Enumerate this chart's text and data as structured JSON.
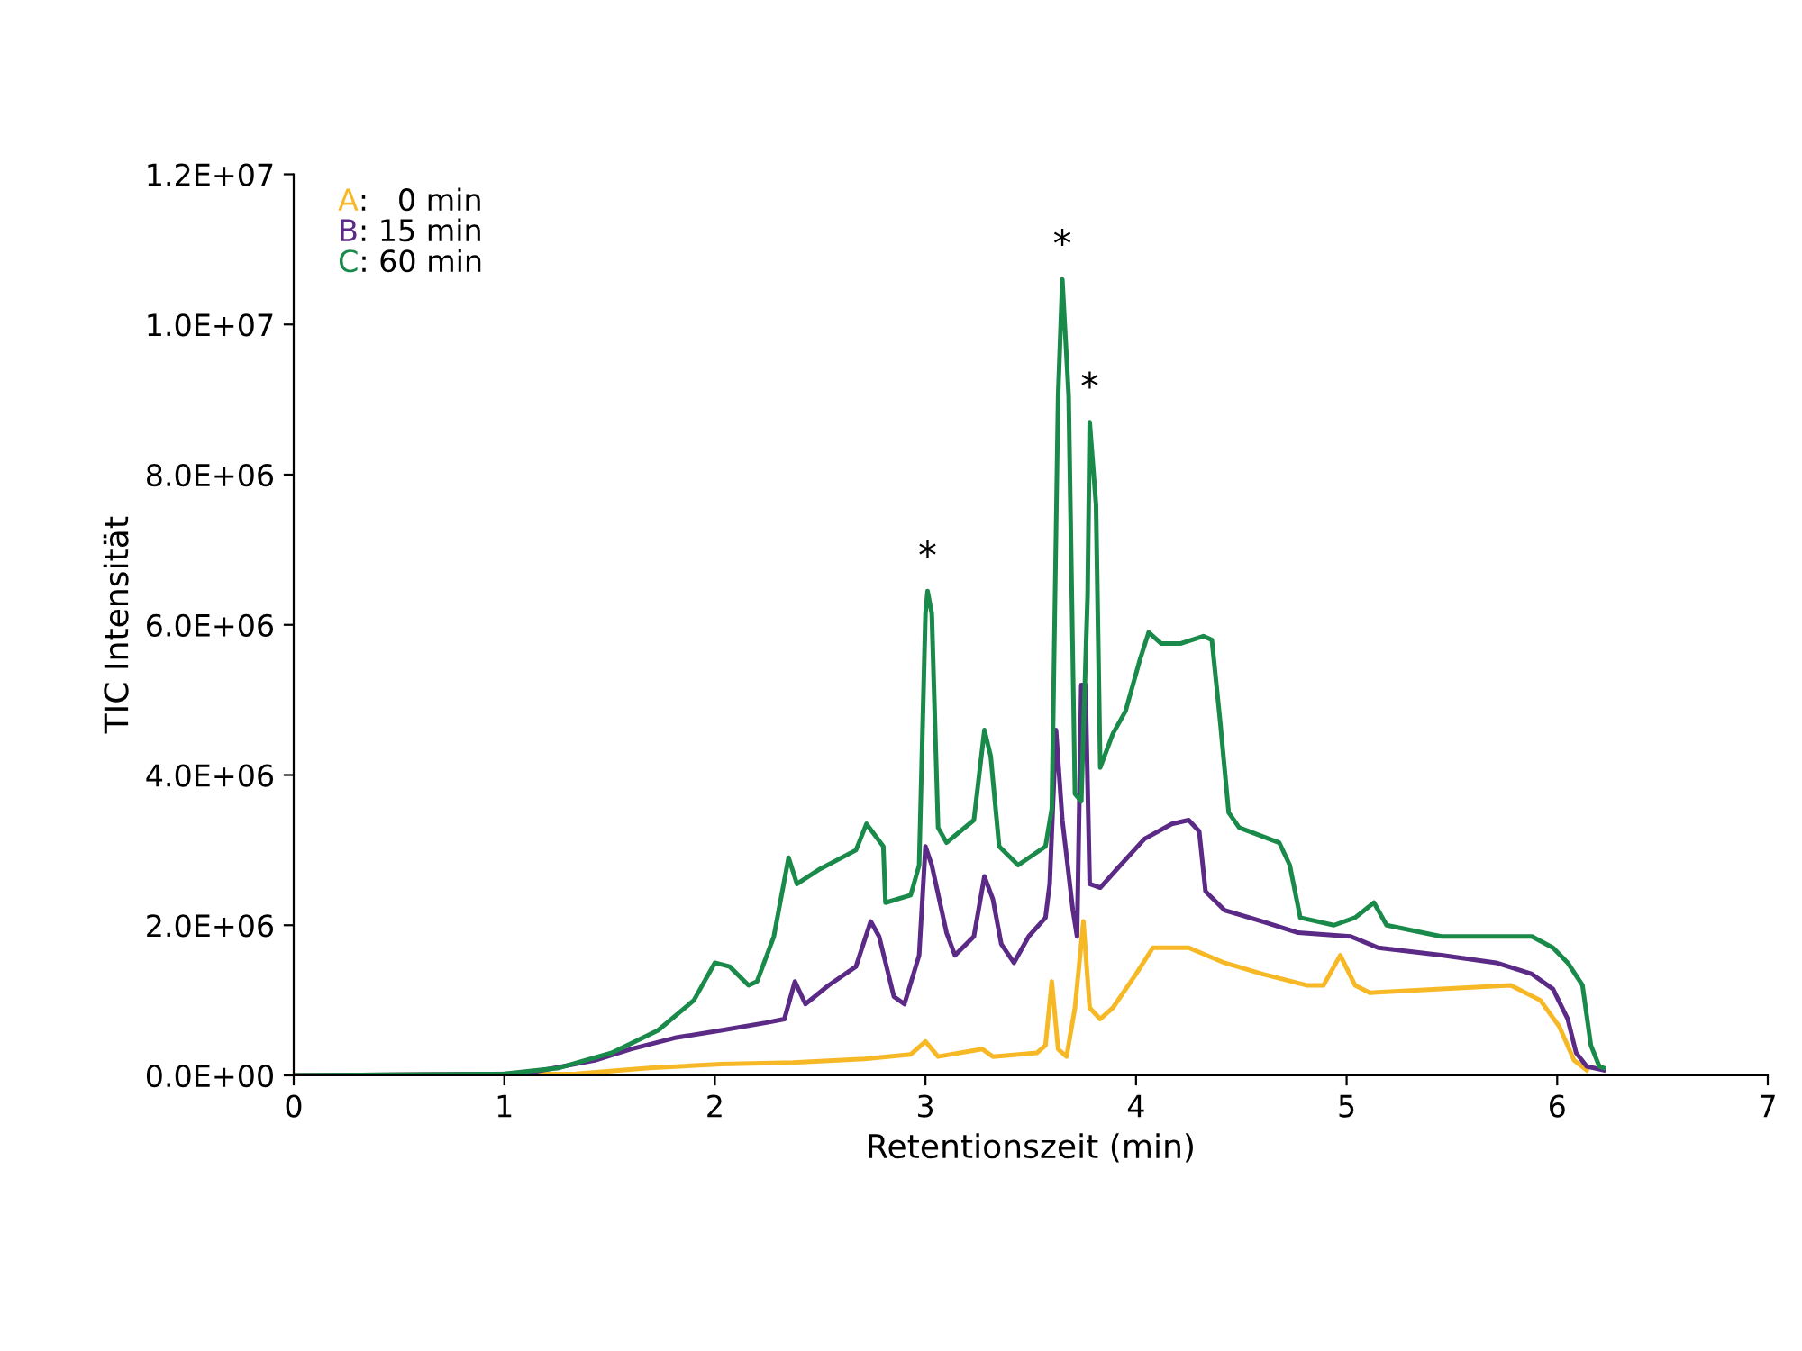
{
  "chart_data": {
    "type": "line",
    "xlabel": "Retentionszeit (min)",
    "ylabel": "TIC Intensität",
    "xlim": [
      0,
      7
    ],
    "xticks": [
      0,
      1,
      2,
      3,
      4,
      5,
      6,
      7
    ],
    "ylim": [
      0,
      12000000.0
    ],
    "yticks": [
      {
        "value": 0,
        "label": "0.0E+00"
      },
      {
        "value": 2000000.0,
        "label": "2.0E+06"
      },
      {
        "value": 4000000.0,
        "label": "4.0E+06"
      },
      {
        "value": 6000000.0,
        "label": "6.0E+06"
      },
      {
        "value": 8000000.0,
        "label": "8.0E+06"
      },
      {
        "value": 10000000.0,
        "label": "1.0E+07"
      },
      {
        "value": 12000000.0,
        "label": "1.2E+07"
      }
    ],
    "legend": "top left",
    "grid": false,
    "marker": "none",
    "line_style": "solid",
    "annotations": [
      {
        "text": "*",
        "x": 3.01,
        "y": 6450000.0
      },
      {
        "text": "*",
        "x": 3.65,
        "y": 10600000.0
      },
      {
        "text": "*",
        "x": 3.78,
        "y": 8700000.0
      }
    ],
    "series": [
      {
        "name": "A:   0 min",
        "color": "#f7b825",
        "x": [
          0,
          1.34,
          1.69,
          2.03,
          2.37,
          2.71,
          2.93,
          3.0,
          3.06,
          3.27,
          3.32,
          3.53,
          3.57,
          3.6,
          3.63,
          3.67,
          3.71,
          3.75,
          3.78,
          3.83,
          3.89,
          4.0,
          4.08,
          4.25,
          4.42,
          4.6,
          4.81,
          4.89,
          4.97,
          5.04,
          5.11,
          5.45,
          5.78,
          5.92,
          6.01,
          6.08,
          6.14
        ],
        "values": [
          0,
          20000.0,
          100000.0,
          150000.0,
          170000.0,
          220000.0,
          280000.0,
          450000.0,
          250000.0,
          350000.0,
          250000.0,
          300000.0,
          400000.0,
          1250000.0,
          350000.0,
          250000.0,
          900000.0,
          2050000.0,
          900000.0,
          750000.0,
          900000.0,
          1350000.0,
          1700000.0,
          1700000.0,
          1500000.0,
          1350000.0,
          1200000.0,
          1200000.0,
          1600000.0,
          1200000.0,
          1100000.0,
          1150000.0,
          1200000.0,
          1000000.0,
          650000.0,
          200000.0,
          70000.0
        ]
      },
      {
        "name": "B: 15 min",
        "color": "#5b2a86",
        "x": [
          0,
          1.09,
          1.43,
          1.6,
          1.81,
          2.03,
          2.24,
          2.33,
          2.38,
          2.43,
          2.54,
          2.67,
          2.74,
          2.78,
          2.85,
          2.9,
          2.97,
          3.0,
          3.03,
          3.1,
          3.14,
          3.23,
          3.28,
          3.32,
          3.36,
          3.42,
          3.49,
          3.57,
          3.59,
          3.62,
          3.65,
          3.7,
          3.72,
          3.74,
          3.76,
          3.78,
          3.83,
          3.91,
          4.04,
          4.17,
          4.25,
          4.3,
          4.33,
          4.42,
          4.6,
          4.77,
          5.02,
          5.15,
          5.45,
          5.71,
          5.88,
          5.98,
          6.05,
          6.09,
          6.14,
          6.22
        ],
        "values": [
          0,
          20000.0,
          200000.0,
          350000.0,
          500000.0,
          600000.0,
          700000.0,
          750000.0,
          1250000.0,
          950000.0,
          1200000.0,
          1450000.0,
          2050000.0,
          1850000.0,
          1050000.0,
          950000.0,
          1600000.0,
          3050000.0,
          2800000.0,
          1900000.0,
          1600000.0,
          1850000.0,
          2650000.0,
          2350000.0,
          1750000.0,
          1500000.0,
          1850000.0,
          2100000.0,
          2550000.0,
          4600000.0,
          3400000.0,
          2200000.0,
          1850000.0,
          5200000.0,
          5200000.0,
          2550000.0,
          2500000.0,
          2750000.0,
          3150000.0,
          3350000.0,
          3400000.0,
          3250000.0,
          2450000.0,
          2200000.0,
          2050000.0,
          1900000.0,
          1850000.0,
          1700000.0,
          1600000.0,
          1500000.0,
          1350000.0,
          1150000.0,
          750000.0,
          300000.0,
          120000.0,
          70000.0
        ]
      },
      {
        "name": "C: 60 min",
        "color": "#1a8a4a",
        "x": [
          0,
          1.0,
          1.26,
          1.51,
          1.73,
          1.9,
          2.0,
          2.07,
          2.16,
          2.2,
          2.28,
          2.35,
          2.39,
          2.5,
          2.67,
          2.72,
          2.8,
          2.81,
          2.93,
          2.97,
          3.0,
          3.01,
          3.03,
          3.06,
          3.1,
          3.23,
          3.28,
          3.31,
          3.35,
          3.44,
          3.57,
          3.6,
          3.63,
          3.65,
          3.68,
          3.71,
          3.74,
          3.77,
          3.78,
          3.81,
          3.83,
          3.89,
          3.95,
          4.02,
          4.06,
          4.12,
          4.21,
          4.32,
          4.36,
          4.4,
          4.44,
          4.49,
          4.68,
          4.73,
          4.78,
          4.94,
          5.04,
          5.13,
          5.19,
          5.45,
          5.88,
          5.98,
          6.05,
          6.12,
          6.16,
          6.2,
          6.22
        ],
        "values": [
          0,
          20000.0,
          100000.0,
          300000.0,
          600000.0,
          1000000.0,
          1500000.0,
          1450000.0,
          1200000.0,
          1250000.0,
          1850000.0,
          2900000.0,
          2550000.0,
          2750000.0,
          3000000.0,
          3350000.0,
          3050000.0,
          2300000.0,
          2400000.0,
          2800000.0,
          6150000.0,
          6450000.0,
          6150000.0,
          3300000.0,
          3100000.0,
          3400000.0,
          4600000.0,
          4250000.0,
          3050000.0,
          2800000.0,
          3050000.0,
          3550000.0,
          9050000.0,
          10600000.0,
          9050000.0,
          3750000.0,
          3650000.0,
          6400000.0,
          8700000.0,
          7600000.0,
          4100000.0,
          4550000.0,
          4850000.0,
          5550000.0,
          5900000.0,
          5750000.0,
          5750000.0,
          5850000.0,
          5800000.0,
          4700000.0,
          3500000.0,
          3300000.0,
          3100000.0,
          2800000.0,
          2100000.0,
          2000000.0,
          2100000.0,
          2300000.0,
          2000000.0,
          1850000.0,
          1850000.0,
          1700000.0,
          1500000.0,
          1200000.0,
          400000.0,
          120000.0,
          100000.0
        ]
      }
    ]
  }
}
